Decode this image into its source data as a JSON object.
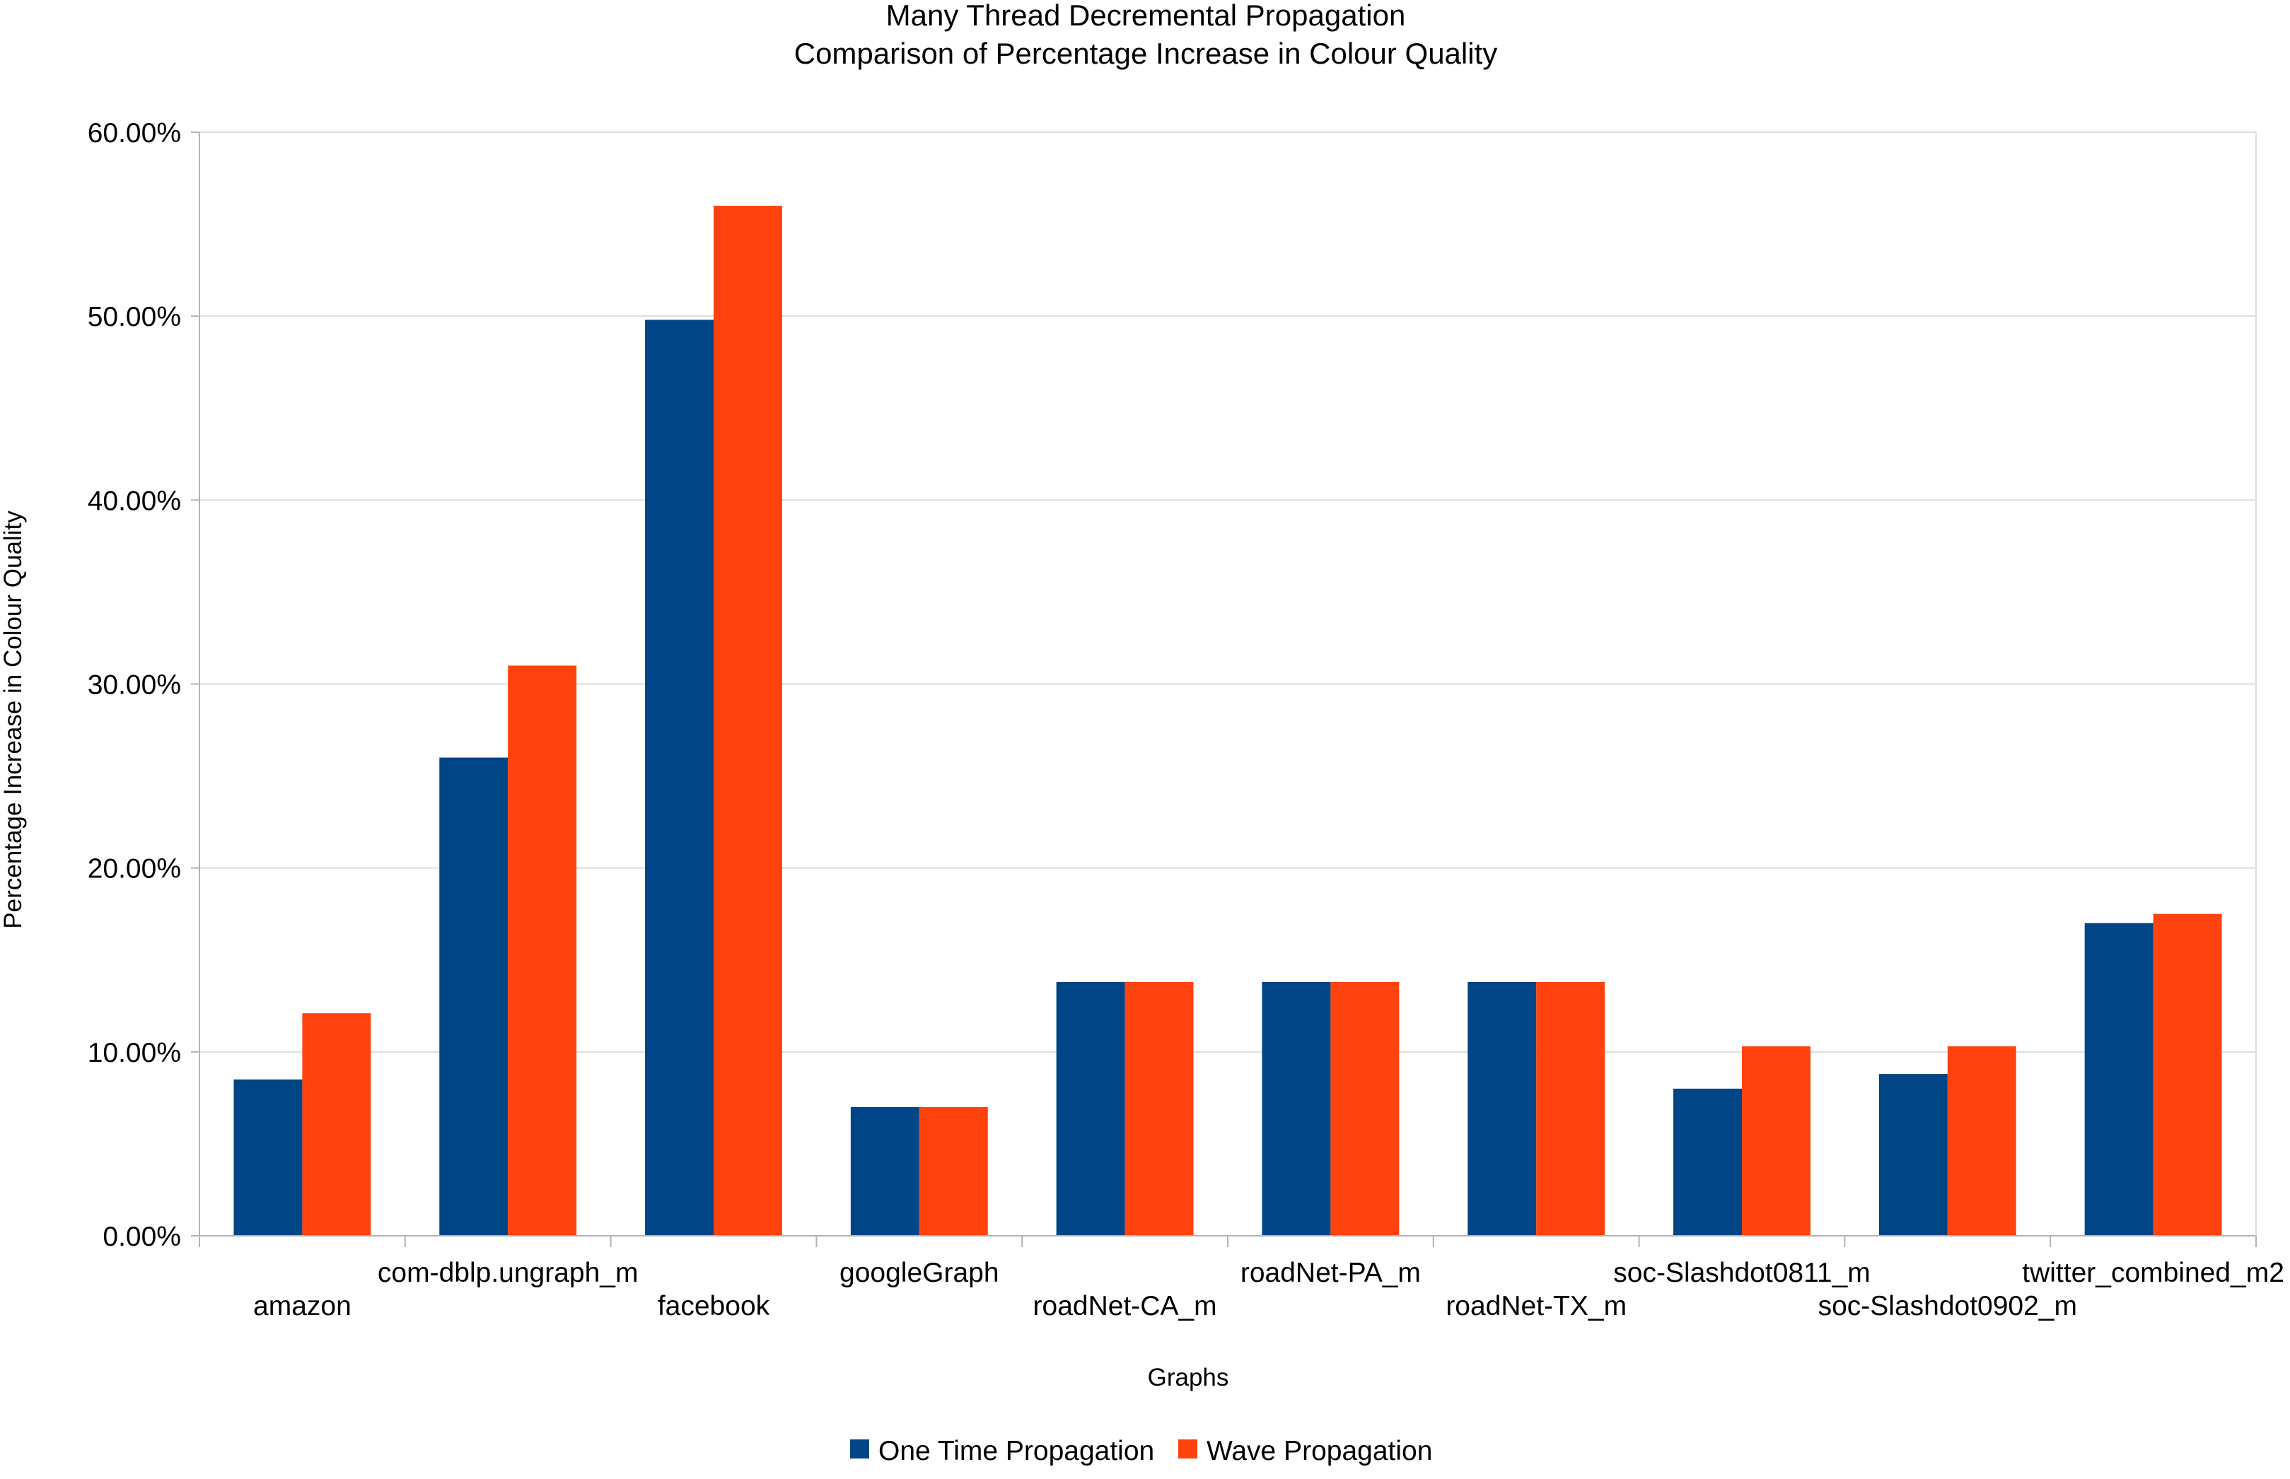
{
  "chart_data": {
    "type": "bar",
    "title": "Many Thread Decremental Propagation",
    "subtitle": "Comparison of Percentage Increase in Colour Quality",
    "xlabel": "Graphs",
    "ylabel": "Percentage Increase in Colour Quality",
    "ylim": [
      0,
      60
    ],
    "yticks": [
      "0.00%",
      "10.00%",
      "20.00%",
      "30.00%",
      "40.00%",
      "50.00%",
      "60.00%"
    ],
    "grid": true,
    "legend_position": "bottom",
    "categories": [
      "amazon",
      "com-dblp.ungraph_m",
      "facebook",
      "googleGraph",
      "roadNet-CA_m",
      "roadNet-PA_m",
      "roadNet-TX_m",
      "soc-Slashdot0811_m",
      "soc-Slashdot0902_m",
      "twitter_combined_m2"
    ],
    "series": [
      {
        "name": "One Time Propagation",
        "color": "#004586",
        "values": [
          8.5,
          26.0,
          49.8,
          7.0,
          13.8,
          13.8,
          13.8,
          8.0,
          8.8,
          17.0
        ]
      },
      {
        "name": "Wave Propagation",
        "color": "#ff420e",
        "values": [
          12.1,
          31.0,
          56.0,
          7.0,
          13.8,
          13.8,
          13.8,
          10.3,
          10.3,
          17.5
        ]
      }
    ]
  }
}
